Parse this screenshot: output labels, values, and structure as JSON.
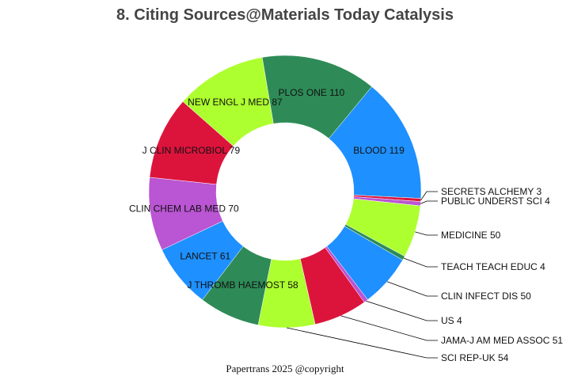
{
  "chart_data": {
    "type": "pie",
    "style": "donut",
    "title": "8. Citing Sources@Materials Today Catalysis",
    "footer": "Papertrans 2025 @copyright",
    "slices": [
      {
        "label": "BLOOD",
        "value": 119,
        "color": "#1e90ff"
      },
      {
        "label": "SECRETS ALCHEMY",
        "value": 3,
        "color": "#dc143c"
      },
      {
        "label": "PUBLIC UNDERST SCI",
        "value": 4,
        "color": "#ba55d3"
      },
      {
        "label": "MEDICINE",
        "value": 50,
        "color": "#adff2f"
      },
      {
        "label": "TEACH TEACH EDUC",
        "value": 4,
        "color": "#2e8b57"
      },
      {
        "label": "CLIN INFECT DIS",
        "value": 50,
        "color": "#1e90ff"
      },
      {
        "label": "US",
        "value": 4,
        "color": "#ba55d3"
      },
      {
        "label": "JAMA-J AM MED ASSOC",
        "value": 51,
        "color": "#dc143c"
      },
      {
        "label": "SCI REP-UK",
        "value": 54,
        "color": "#adff2f"
      },
      {
        "label": "J THROMB HAEMOST",
        "value": 58,
        "color": "#2e8b57"
      },
      {
        "label": "LANCET",
        "value": 61,
        "color": "#1e90ff"
      },
      {
        "label": "CLIN CHEM LAB MED",
        "value": 70,
        "color": "#ba55d3"
      },
      {
        "label": "J CLIN MICROBIOL",
        "value": 79,
        "color": "#dc143c"
      },
      {
        "label": "NEW ENGL J MED",
        "value": 87,
        "color": "#adff2f"
      },
      {
        "label": "PLOS ONE",
        "value": 110,
        "color": "#2e8b57"
      }
    ]
  }
}
